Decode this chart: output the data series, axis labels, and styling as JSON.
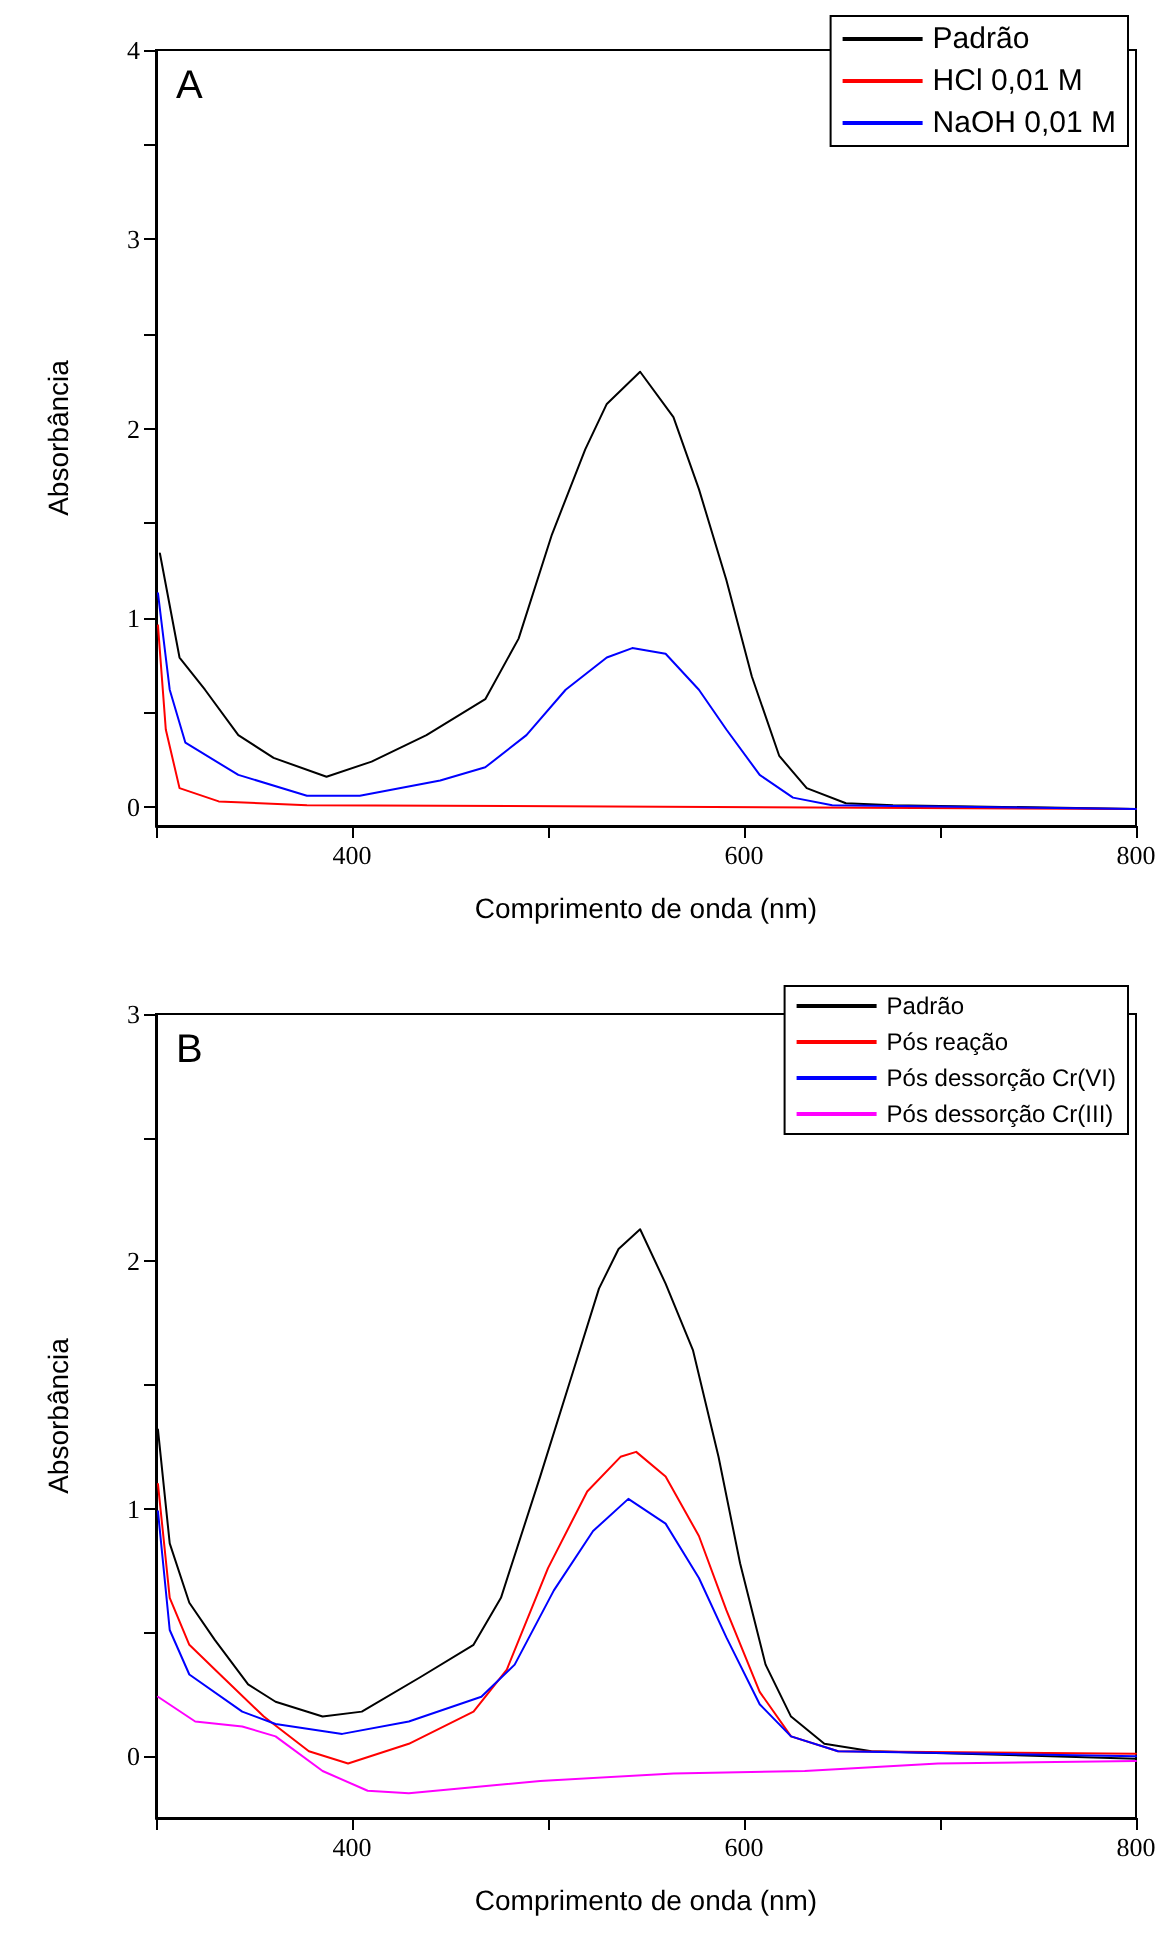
{
  "chart_data": [
    {
      "type": "line",
      "annotations": [
        "A"
      ],
      "xlabel": "Comprimento de onda (nm)",
      "ylabel": "Absorbância",
      "xlim": [
        300,
        800
      ],
      "xticks": [
        {
          "value": 300,
          "label": null
        },
        400,
        {
          "value": 500,
          "label": null
        },
        600,
        {
          "value": 700,
          "label": null
        },
        800
      ],
      "ylim": [
        -0.1,
        4
      ],
      "yticks": [
        0,
        {
          "value": 0.5,
          "label": null
        },
        1,
        {
          "value": 1.5,
          "label": null
        },
        2,
        {
          "value": 2.5,
          "label": null
        },
        3,
        {
          "value": 3.5,
          "label": null
        },
        4
      ],
      "grid": false,
      "legend": "top right",
      "marker": "none",
      "line_style": "solid",
      "series": [
        {
          "name": "Padrão",
          "color": "#000000",
          "x": [
            302,
            312,
            325,
            342,
            360,
            387,
            410,
            438,
            468,
            485,
            502,
            519,
            530,
            547,
            564,
            577,
            591,
            604,
            618,
            632,
            652,
            676,
            800
          ],
          "values": [
            1.34,
            0.79,
            0.62,
            0.38,
            0.26,
            0.16,
            0.24,
            0.38,
            0.57,
            0.89,
            1.44,
            1.89,
            2.13,
            2.3,
            2.06,
            1.68,
            1.2,
            0.69,
            0.27,
            0.1,
            0.02,
            0.01,
            -0.01
          ]
        },
        {
          "name": "HCl 0,01 M",
          "color": "#ff0000",
          "x": [
            301,
            305,
            312,
            332,
            377,
            800
          ],
          "values": [
            0.96,
            0.41,
            0.1,
            0.03,
            0.01,
            -0.01
          ]
        },
        {
          "name": "NaOH 0,01 M",
          "color": "#0000ff",
          "x": [
            301,
            307,
            315,
            342,
            377,
            404,
            445,
            468,
            489,
            509,
            530,
            543,
            560,
            577,
            591,
            608,
            625,
            645,
            800
          ],
          "values": [
            1.13,
            0.62,
            0.34,
            0.17,
            0.06,
            0.06,
            0.14,
            0.21,
            0.38,
            0.62,
            0.79,
            0.84,
            0.81,
            0.62,
            0.41,
            0.17,
            0.05,
            0.01,
            -0.01
          ]
        }
      ]
    },
    {
      "type": "line",
      "annotations": [
        "B"
      ],
      "xlabel": "Comprimento de onda (nm)",
      "ylabel": "Absorbância",
      "xlim": [
        300,
        800
      ],
      "xticks": [
        {
          "value": 300,
          "label": null
        },
        400,
        {
          "value": 500,
          "label": null
        },
        600,
        {
          "value": 700,
          "label": null
        },
        800
      ],
      "ylim": [
        -0.25,
        3
      ],
      "yticks": [
        0,
        {
          "value": 0.5,
          "label": null
        },
        1,
        {
          "value": 1.5,
          "label": null
        },
        2,
        {
          "value": 2.5,
          "label": null
        },
        3
      ],
      "grid": false,
      "legend": "top right",
      "marker": "none",
      "line_style": "solid",
      "series": [
        {
          "name": "Padrão",
          "color": "#000000",
          "x": [
            301,
            307,
            317,
            330,
            347,
            361,
            385,
            405,
            435,
            462,
            476,
            496,
            513,
            526,
            536,
            547,
            560,
            574,
            587,
            598,
            611,
            624,
            641,
            665,
            800
          ],
          "values": [
            1.32,
            0.86,
            0.62,
            0.47,
            0.29,
            0.22,
            0.16,
            0.18,
            0.32,
            0.45,
            0.64,
            1.13,
            1.56,
            1.89,
            2.05,
            2.13,
            1.91,
            1.64,
            1.21,
            0.78,
            0.37,
            0.16,
            0.05,
            0.02,
            -0.01
          ]
        },
        {
          "name": "Pós reação",
          "color": "#ff0000",
          "x": [
            301,
            307,
            317,
            334,
            355,
            378,
            398,
            429,
            462,
            479,
            500,
            520,
            537,
            545,
            560,
            577,
            591,
            608,
            624,
            648,
            800
          ],
          "values": [
            1.1,
            0.64,
            0.45,
            0.32,
            0.16,
            0.02,
            -0.03,
            0.05,
            0.18,
            0.35,
            0.76,
            1.07,
            1.21,
            1.23,
            1.13,
            0.89,
            0.59,
            0.26,
            0.08,
            0.02,
            0.01
          ]
        },
        {
          "name": "Pós dessorção Cr(VI)",
          "color": "#0000ff",
          "x": [
            301,
            307,
            317,
            344,
            361,
            395,
            429,
            466,
            483,
            503,
            523,
            541,
            560,
            577,
            591,
            608,
            624,
            648,
            800
          ],
          "values": [
            0.99,
            0.51,
            0.33,
            0.18,
            0.13,
            0.09,
            0.14,
            0.24,
            0.37,
            0.67,
            0.91,
            1.04,
            0.94,
            0.72,
            0.48,
            0.21,
            0.08,
            0.02,
            0
          ]
        },
        {
          "name": "Pós dessorção Cr(III)",
          "color": "#ff00ff",
          "x": [
            301,
            320,
            344,
            361,
            385,
            408,
            429,
            496,
            564,
            631,
            699,
            800
          ],
          "values": [
            0.24,
            0.14,
            0.12,
            0.08,
            -0.06,
            -0.14,
            -0.15,
            -0.1,
            -0.07,
            -0.06,
            -0.03,
            -0.02
          ]
        }
      ]
    }
  ]
}
